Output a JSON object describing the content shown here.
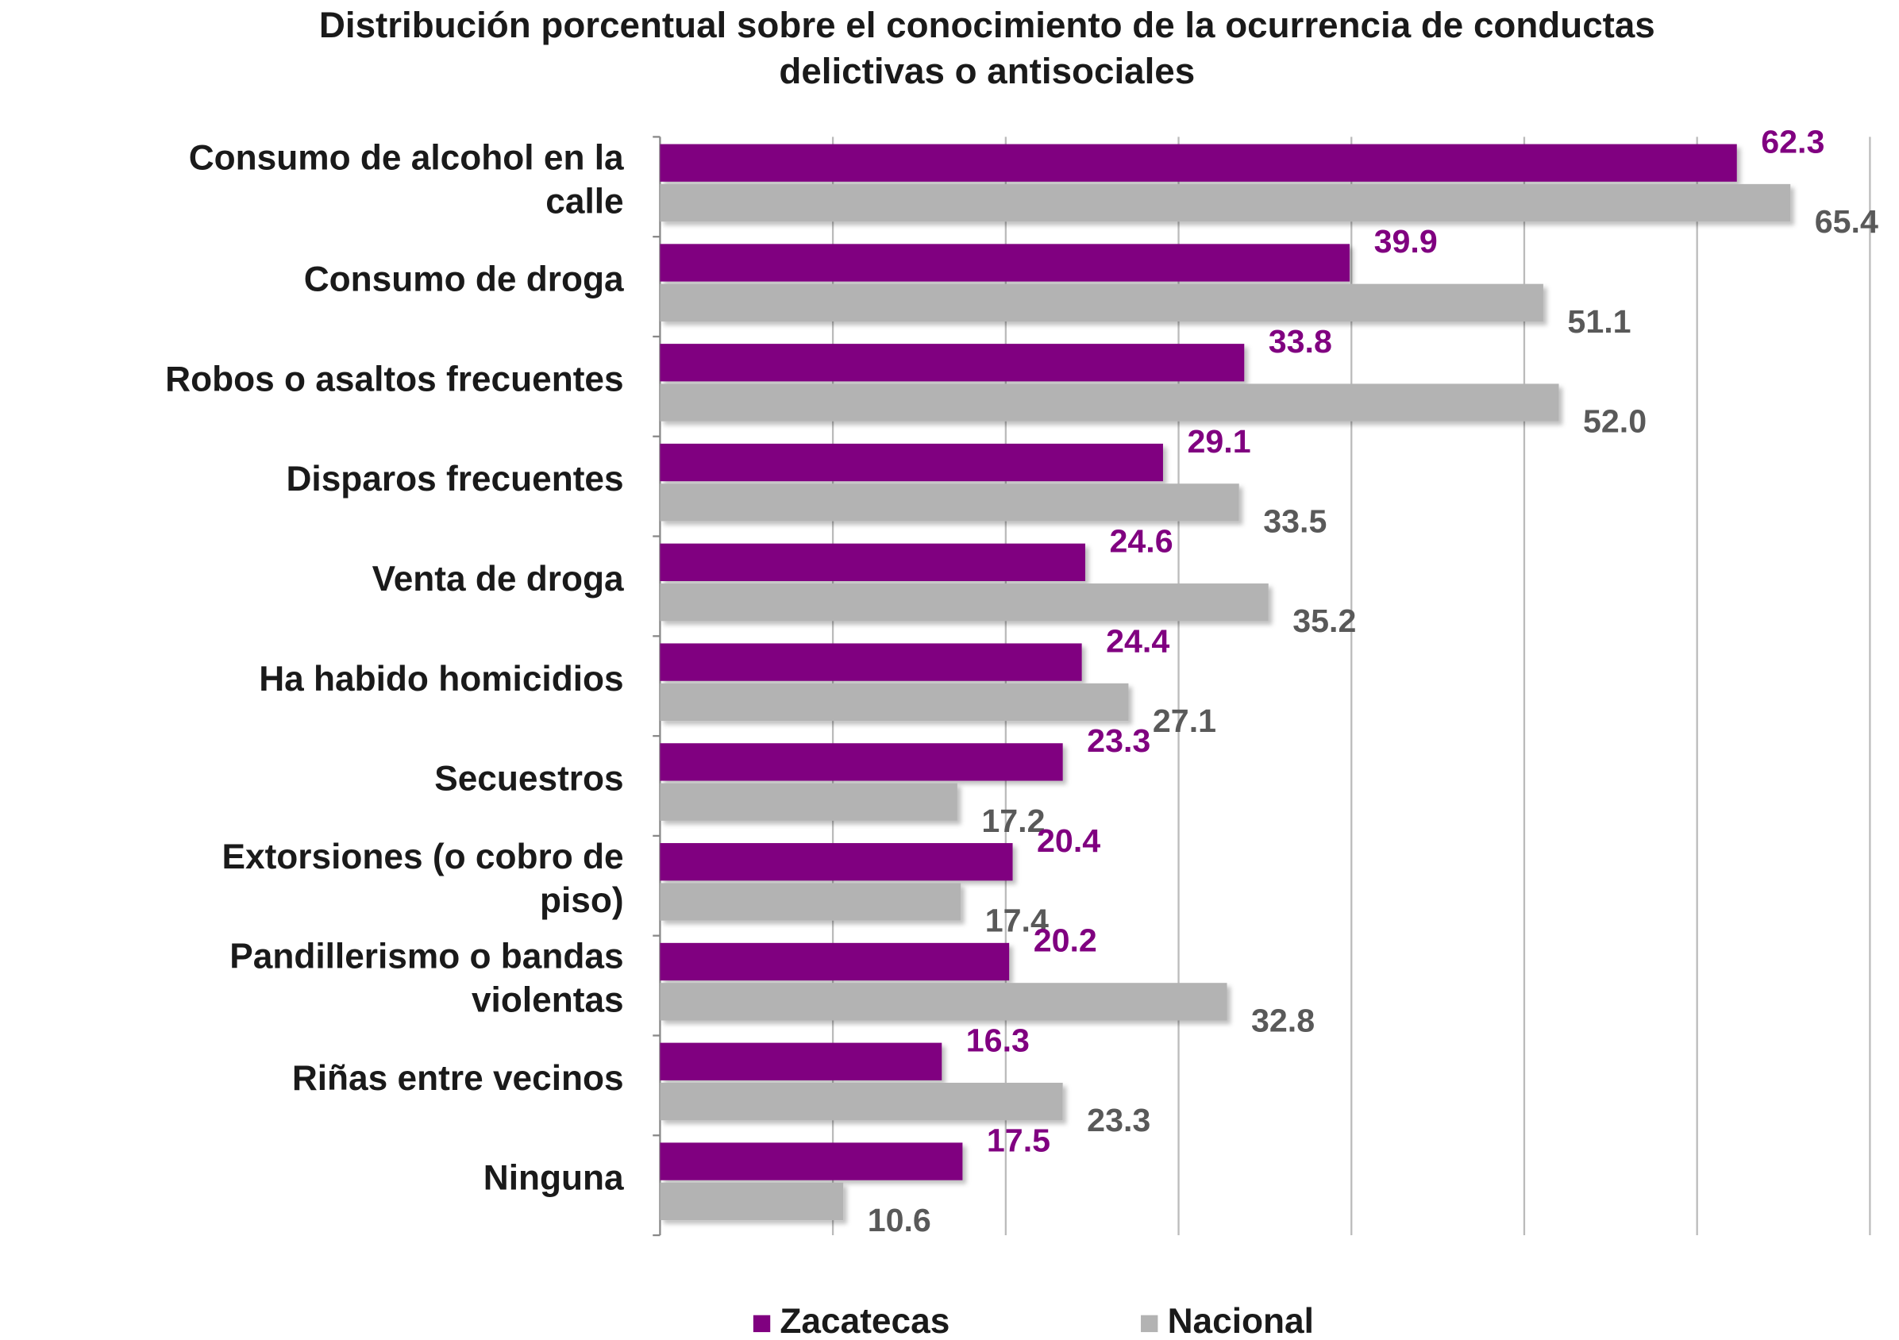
{
  "chart_data": {
    "type": "bar",
    "orientation": "horizontal",
    "title": "Distribución porcentual sobre el conocimiento de la ocurrencia de conductas delictivas o antisociales",
    "categories": [
      "Consumo de alcohol en la calle",
      "Consumo de droga",
      "Robos o asaltos frecuentes",
      "Disparos frecuentes",
      "Venta de droga",
      "Ha habido homicidios",
      "Secuestros",
      "Extorsiones (o cobro de piso)",
      "Pandillerismo o bandas violentas",
      "Riñas entre vecinos",
      "Ninguna"
    ],
    "series": [
      {
        "name": "Zacatecas",
        "color": "#800080",
        "values": [
          62.3,
          39.9,
          33.8,
          29.1,
          24.6,
          24.4,
          23.3,
          20.4,
          20.2,
          16.3,
          17.5
        ],
        "value_labels": [
          "62.3",
          "39.9",
          "33.8",
          "29.1",
          "24.6",
          "24.4",
          "23.3",
          "20.4",
          "20.2",
          "16.3",
          "17.5"
        ]
      },
      {
        "name": "Nacional",
        "color": "#b3b3b3",
        "values": [
          65.4,
          51.1,
          52.0,
          33.5,
          35.2,
          27.1,
          17.2,
          17.4,
          32.8,
          23.3,
          10.6
        ],
        "value_labels": [
          "65.4",
          "51.1",
          "52.0",
          "33.5",
          "35.2",
          "27.1",
          "17.2",
          "17.4",
          "32.8",
          "23.3",
          "10.6"
        ]
      }
    ],
    "xlim": [
      0,
      70
    ],
    "xticks": [
      0,
      10,
      20,
      30,
      40,
      50,
      60,
      70
    ],
    "grid": true,
    "legend": "bottom"
  }
}
